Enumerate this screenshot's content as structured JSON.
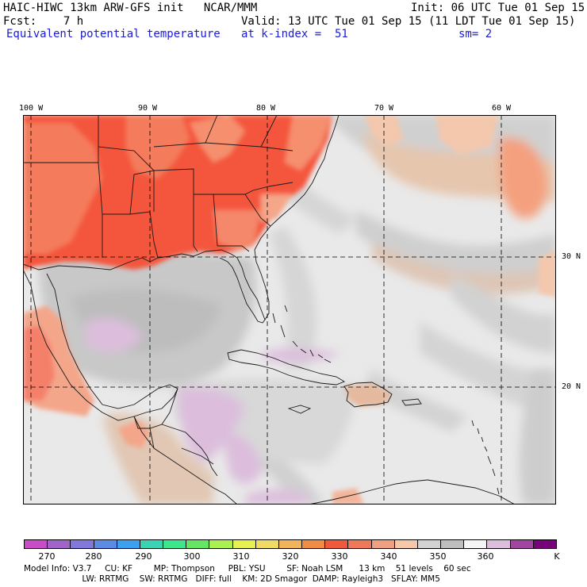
{
  "header": {
    "line1_left": "HAIC-HIWC 13km ARW-GFS init   NCAR/MMM",
    "line1_right": "Init: 06 UTC Tue 01 Sep 15",
    "line2_left": "Fcst:    7 h",
    "line2_right": "Valid: 13 UTC Tue 01 Sep 15 (11 LDT Tue 01 Sep 15)",
    "line3_left": "Equivalent potential temperature",
    "line3_mid": "at k-index =  51",
    "line3_right": "sm= 2"
  },
  "map": {
    "lon_labels": [
      "100 W",
      "90 W",
      "80 W",
      "70 W",
      "60 W"
    ],
    "lat_labels": [
      "30 N",
      "20 N"
    ]
  },
  "colorbar": {
    "colors": [
      "#c84cc8",
      "#a064c8",
      "#8278dc",
      "#5a8ce6",
      "#3ca0f0",
      "#3cd2b4",
      "#3ce68c",
      "#64e664",
      "#aaf050",
      "#e6f050",
      "#f0dc64",
      "#f0b45a",
      "#f08c46",
      "#f05a3c",
      "#f0785a",
      "#f0a082",
      "#f5c8aa",
      "#d2d2d2",
      "#bebebe",
      "#f5f5f5",
      "#dcbedc",
      "#a046a0",
      "#780078"
    ],
    "labels": [
      "270",
      "280",
      "290",
      "300",
      "310",
      "320",
      "330",
      "340",
      "350",
      "360",
      "K"
    ],
    "units": "K"
  },
  "model_info": {
    "line1": "Model Info: V3.7     CU: KF        MP: Thompson     PBL: YSU        SF: Noah LSM      13 km    51 levels    60 sec",
    "line2": "                      LW: RRTMG    SW: RRTMG   DIFF: full    KM: 2D Smagor  DAMP: Rayleigh3   SFLAY: MM5"
  }
}
